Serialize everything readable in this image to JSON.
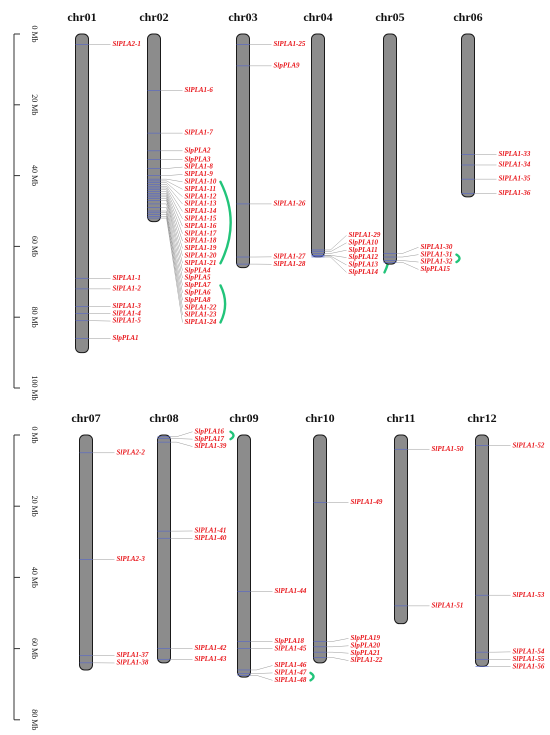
{
  "colors": {
    "chromosome": "#8c8c8c",
    "chromosome_outline": "#1a1a1a",
    "gene_label": "#e8161b",
    "gene_marker": "#5566cc",
    "leader_line": "#9a9a9a",
    "tandem_duplication_arc": "#22c47a"
  },
  "scale_unit": "Mb",
  "panels": [
    {
      "id": "top",
      "axis_ticks": [
        "0 Mb",
        "20 Mb",
        "40 Mb",
        "60 Mb",
        "80 Mb",
        "100 Mb"
      ],
      "chromosomes": [
        {
          "name": "chr01",
          "length_mb": 90,
          "genes": [
            {
              "label": "SlPLA2-1",
              "pos": 3
            },
            {
              "label": "SlPLA1-1",
              "pos": 69
            },
            {
              "label": "SlPLA1-2",
              "pos": 72
            },
            {
              "label": "SlPLA1-3",
              "pos": 77
            },
            {
              "label": "SlPLA1-4",
              "pos": 79
            },
            {
              "label": "SlPLA1-5",
              "pos": 81
            },
            {
              "label": "SlpPLA1",
              "pos": 86
            }
          ],
          "duplications": []
        },
        {
          "name": "chr02",
          "length_mb": 53,
          "genes": [
            {
              "label": "SlPLA1-6",
              "pos": 16
            },
            {
              "label": "SlPLA1-7",
              "pos": 28
            },
            {
              "label": "SlpPLA2",
              "pos": 33
            },
            {
              "label": "SlpPLA3",
              "pos": 35.5
            },
            {
              "label": "SlPLA1-8",
              "pos": 38
            },
            {
              "label": "SlPLA1-9",
              "pos": 40
            },
            {
              "label": "SlPLA1-10",
              "pos": 41
            },
            {
              "label": "SlPLA1-11",
              "pos": 41.5
            },
            {
              "label": "SlPLA1-12",
              "pos": 42
            },
            {
              "label": "SlPLA1-13",
              "pos": 42.5
            },
            {
              "label": "SlPLA1-14",
              "pos": 43
            },
            {
              "label": "SlPLA1-15",
              "pos": 43.5
            },
            {
              "label": "SlPLA1-16",
              "pos": 44
            },
            {
              "label": "SlPLA1-17",
              "pos": 44.5
            },
            {
              "label": "SlPLA1-18",
              "pos": 45
            },
            {
              "label": "SlPLA1-19",
              "pos": 45.5
            },
            {
              "label": "SlPLA1-20",
              "pos": 46
            },
            {
              "label": "SlPLA1-21",
              "pos": 46.5
            },
            {
              "label": "SlpPLA4",
              "pos": 47
            },
            {
              "label": "SlpPLA5",
              "pos": 48
            },
            {
              "label": "SlpPLA7",
              "pos": 49
            },
            {
              "label": "SlpPLA6",
              "pos": 50
            },
            {
              "label": "SlpPLA8",
              "pos": 50.5
            },
            {
              "label": "SlPLA1-22",
              "pos": 51
            },
            {
              "label": "SlPLA1-23",
              "pos": 51.5
            },
            {
              "label": "SlPLA1-24",
              "pos": 52
            }
          ],
          "duplications": [
            {
              "from": "SlPLA1-10",
              "to": "SlPLA1-21"
            },
            {
              "from": "SlpPLA7",
              "to": "SlPLA1-24"
            }
          ]
        },
        {
          "name": "chr03",
          "length_mb": 66,
          "genes": [
            {
              "label": "SlPLA1-25",
              "pos": 3
            },
            {
              "label": "SlpPLA9",
              "pos": 9
            },
            {
              "label": "SlPLA1-26",
              "pos": 48
            },
            {
              "label": "SlPLA1-27",
              "pos": 63
            },
            {
              "label": "SlPLA1-28",
              "pos": 65
            }
          ],
          "duplications": []
        },
        {
          "name": "chr04",
          "length_mb": 63,
          "genes": [
            {
              "label": "SlPLA1-29",
              "pos": 61
            },
            {
              "label": "SlpPLA10",
              "pos": 61.5
            },
            {
              "label": "SlpPLA11",
              "pos": 62
            },
            {
              "label": "SlpPLA12",
              "pos": 62.5
            },
            {
              "label": "SlpPLA13",
              "pos": 62.7
            },
            {
              "label": "SlpPLA14",
              "pos": 63
            }
          ],
          "duplications": [
            {
              "from": "SlPLA1-29",
              "to": "SlpPLA14"
            }
          ]
        },
        {
          "name": "chr05",
          "length_mb": 65,
          "genes": [
            {
              "label": "SlPLA1-30",
              "pos": 62
            },
            {
              "label": "SlPLA1-31",
              "pos": 63
            },
            {
              "label": "SlPLA1-32",
              "pos": 64
            },
            {
              "label": "SlpPLA15",
              "pos": 64.5
            }
          ],
          "duplications": [
            {
              "from": "SlPLA1-31",
              "to": "SlPLA1-32"
            }
          ]
        },
        {
          "name": "chr06",
          "length_mb": 46,
          "genes": [
            {
              "label": "SlPLA1-33",
              "pos": 34
            },
            {
              "label": "SlPLA1-34",
              "pos": 37
            },
            {
              "label": "SlPLA1-35",
              "pos": 41
            },
            {
              "label": "SlPLA1-36",
              "pos": 45
            }
          ],
          "duplications": []
        }
      ]
    },
    {
      "id": "bottom",
      "axis_ticks": [
        "0 Mb",
        "20 Mb",
        "40 Mb",
        "60 Mb",
        "80 Mb"
      ],
      "chromosomes": [
        {
          "name": "chr07",
          "length_mb": 66,
          "genes": [
            {
              "label": "SlPLA2-2",
              "pos": 5
            },
            {
              "label": "SlPLA2-3",
              "pos": 35
            },
            {
              "label": "SlPLA1-37",
              "pos": 62
            },
            {
              "label": "SlPLA1-38",
              "pos": 64
            }
          ],
          "duplications": []
        },
        {
          "name": "chr08",
          "length_mb": 64,
          "genes": [
            {
              "label": "SlpPLA16",
              "pos": 0.5
            },
            {
              "label": "SlpPLA17",
              "pos": 1
            },
            {
              "label": "SlPLA1-39",
              "pos": 2
            },
            {
              "label": "SlPLA1-41",
              "pos": 27
            },
            {
              "label": "SlPLA1-40",
              "pos": 29
            },
            {
              "label": "SlPLA1-42",
              "pos": 60
            },
            {
              "label": "SlPLA1-43",
              "pos": 63
            }
          ],
          "duplications": [
            {
              "from": "SlpPLA16",
              "to": "SlpPLA17"
            }
          ]
        },
        {
          "name": "chr09",
          "length_mb": 68,
          "genes": [
            {
              "label": "SlPLA1-44",
              "pos": 44
            },
            {
              "label": "SlpPLA18",
              "pos": 58
            },
            {
              "label": "SlPLA1-45",
              "pos": 60
            },
            {
              "label": "SlPLA1-46",
              "pos": 66
            },
            {
              "label": "SlPLA1-47",
              "pos": 67
            },
            {
              "label": "SlPLA1-48",
              "pos": 67.5
            }
          ],
          "duplications": [
            {
              "from": "SlPLA1-47",
              "to": "SlPLA1-48"
            }
          ]
        },
        {
          "name": "chr10",
          "length_mb": 64,
          "genes": [
            {
              "label": "SlPLA1-49",
              "pos": 19
            },
            {
              "label": "SlpPLA19",
              "pos": 58
            },
            {
              "label": "SlpPLA20",
              "pos": 59.5
            },
            {
              "label": "SlpPLA21",
              "pos": 61
            },
            {
              "label": "SlPLA1-22",
              "pos": 62.5
            }
          ],
          "duplications": []
        },
        {
          "name": "chr11",
          "length_mb": 53,
          "genes": [
            {
              "label": "SlPLA1-50",
              "pos": 4
            },
            {
              "label": "SlPLA1-51",
              "pos": 48
            }
          ],
          "duplications": []
        },
        {
          "name": "chr12",
          "length_mb": 65,
          "genes": [
            {
              "label": "SlPLA1-52",
              "pos": 3
            },
            {
              "label": "SlPLA1-53",
              "pos": 45
            },
            {
              "label": "SlPLA1-54",
              "pos": 61
            },
            {
              "label": "SlPLA1-55",
              "pos": 63
            },
            {
              "label": "SlPLA1-56",
              "pos": 65
            }
          ],
          "duplications": []
        }
      ]
    }
  ]
}
